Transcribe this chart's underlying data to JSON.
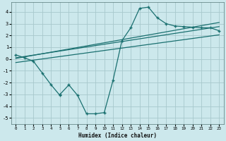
{
  "xlabel": "Humidex (Indice chaleur)",
  "background_color": "#cce8ec",
  "grid_color": "#a8c8cc",
  "line_color": "#1a7070",
  "xlim": [
    -0.5,
    23.5
  ],
  "ylim": [
    -5.5,
    4.8
  ],
  "xticks": [
    0,
    1,
    2,
    3,
    4,
    5,
    6,
    7,
    8,
    9,
    10,
    11,
    12,
    13,
    14,
    15,
    16,
    17,
    18,
    19,
    20,
    21,
    22,
    23
  ],
  "yticks": [
    -5,
    -4,
    -3,
    -2,
    -1,
    0,
    1,
    2,
    3,
    4
  ],
  "jagged_x": [
    0,
    1,
    2,
    3,
    4,
    5,
    5,
    6,
    7,
    8,
    9,
    10,
    11,
    12,
    13,
    14,
    15,
    16,
    17,
    18,
    19,
    20,
    21,
    22,
    23
  ],
  "jagged_y": [
    0.35,
    0.1,
    -0.2,
    -1.2,
    -2.2,
    -3.1,
    -3.0,
    -2.2,
    -3.1,
    -4.65,
    -4.65,
    -4.55,
    -1.8,
    1.55,
    2.65,
    4.3,
    4.4,
    3.5,
    3.0,
    2.8,
    2.75,
    2.7,
    2.65,
    2.65,
    2.4
  ],
  "line1_x": [
    0,
    23
  ],
  "line1_y": [
    0.1,
    2.75
  ],
  "line2_x": [
    0,
    23
  ],
  "line2_y": [
    0.05,
    3.1
  ],
  "line3_x": [
    0,
    23
  ],
  "line3_y": [
    -0.3,
    2.05
  ]
}
